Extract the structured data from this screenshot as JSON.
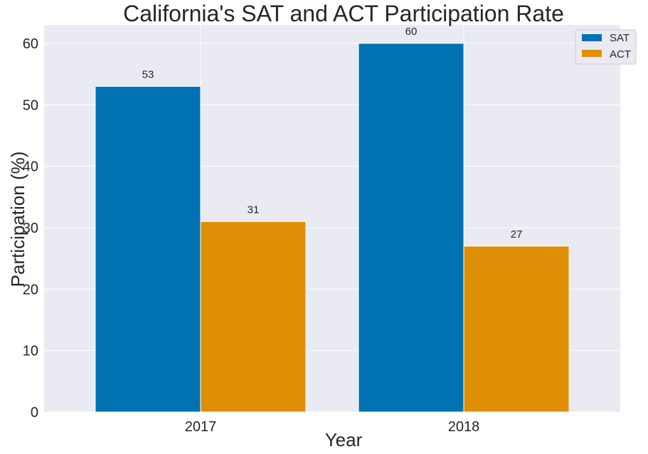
{
  "chart_data": {
    "type": "bar",
    "title": "California's SAT and ACT Participation Rate",
    "xlabel": "Year",
    "ylabel": "Participation (%)",
    "categories": [
      "2017",
      "2018"
    ],
    "series": [
      {
        "name": "SAT",
        "values": [
          53,
          60
        ],
        "color": "#0072b2"
      },
      {
        "name": "ACT",
        "values": [
          31,
          27
        ],
        "color": "#de8f05"
      }
    ],
    "ylim": [
      0,
      63
    ],
    "yticks": [
      0,
      10,
      20,
      30,
      40,
      50,
      60
    ],
    "grid": true,
    "legend_position": "top-right",
    "background": "#eaeaf2"
  }
}
